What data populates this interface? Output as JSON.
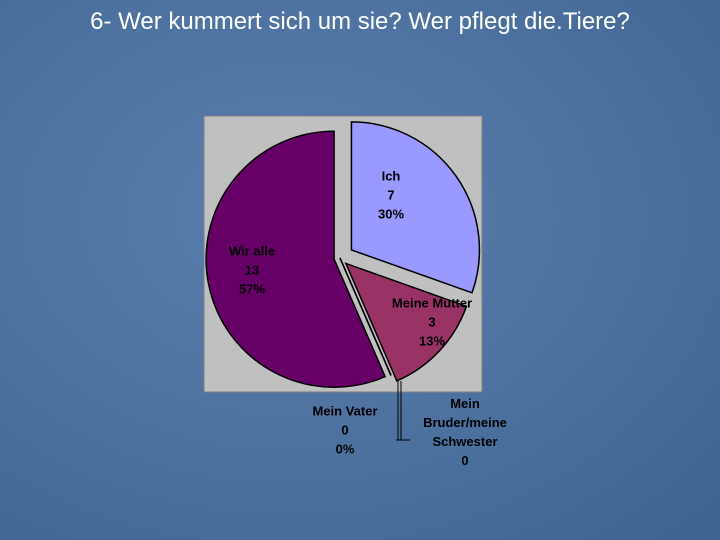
{
  "chart_data": {
    "type": "pie",
    "title": "6- Wer kummert sich um sie? Wer pflegt die.Tiere?",
    "categories": [
      "Ich",
      "Meine Mutter",
      "Mein Vater",
      "Mein Bruder/meine Schwester",
      "Wir alle"
    ],
    "values": [
      7,
      3,
      0,
      0,
      13
    ],
    "percent_labels": [
      "30%",
      "13%",
      "0%",
      null,
      "57%"
    ],
    "colors": [
      "#9999ff",
      "#993366",
      "#993366",
      "#660066",
      "#660066"
    ]
  }
}
